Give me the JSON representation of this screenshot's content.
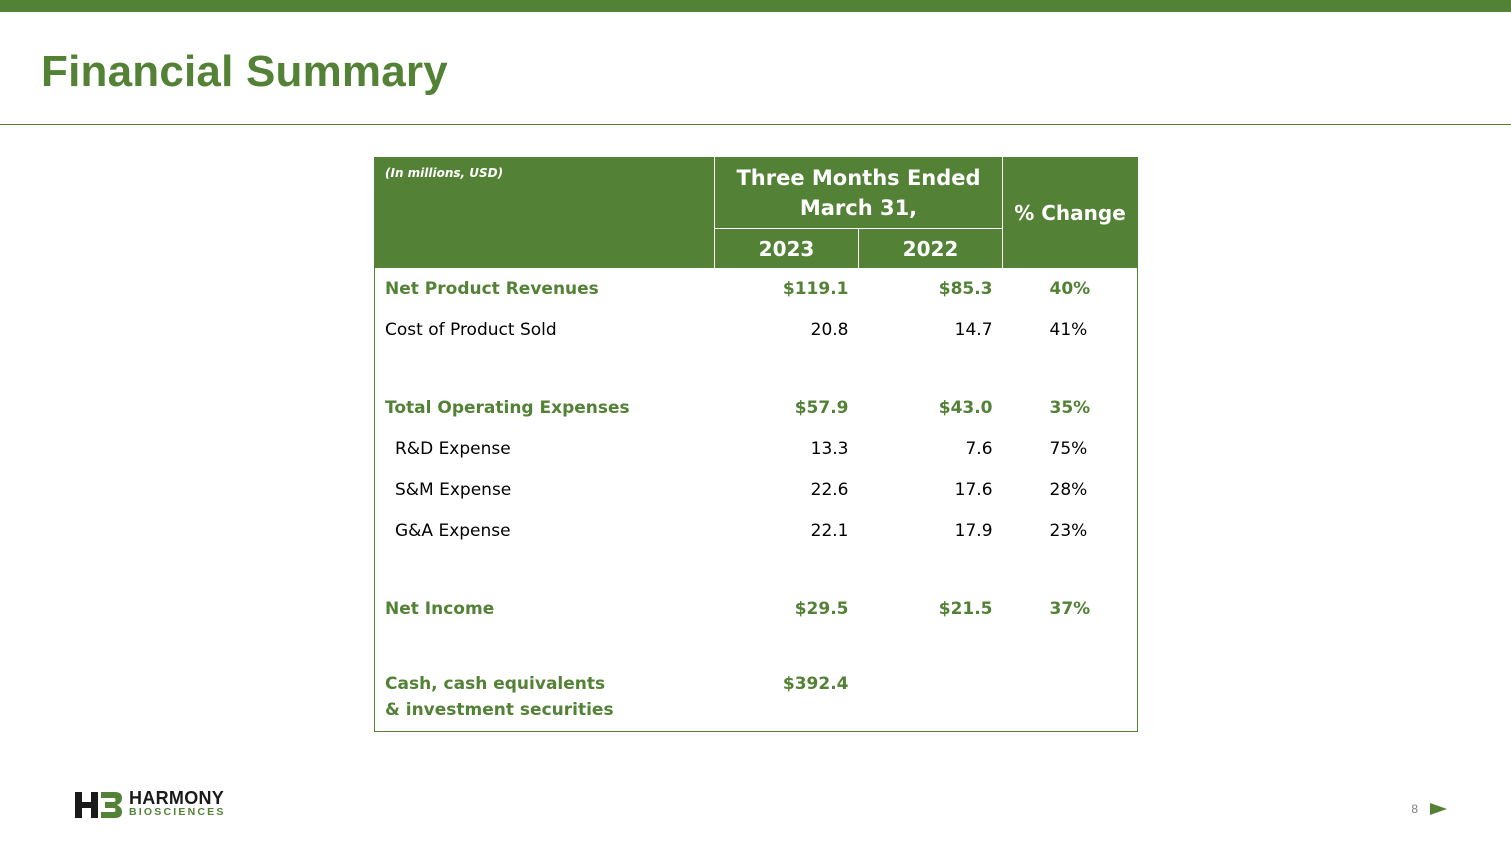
{
  "slide": {
    "title": "Financial Summary",
    "page_number": "8"
  },
  "table": {
    "units": "(In millions, USD)",
    "period_header": "Three Months Ended March 31,",
    "change_header": "% Change",
    "years": [
      "2023",
      "2022"
    ],
    "rows": [
      {
        "label": "Net Product Revenues",
        "v2023": "$119.1",
        "v2022": "$85.3",
        "change": "40%"
      },
      {
        "label": "Cost of Product Sold",
        "v2023": "20.8",
        "v2022": "14.7",
        "change": "41%"
      },
      {
        "label": "Total Operating Expenses",
        "v2023": "$57.9",
        "v2022": "$43.0",
        "change": "35%"
      },
      {
        "label": "R&D Expense",
        "v2023": "13.3",
        "v2022": "7.6",
        "change": "75%"
      },
      {
        "label": "S&M Expense",
        "v2023": "22.6",
        "v2022": "17.6",
        "change": "28%"
      },
      {
        "label": "G&A Expense",
        "v2023": "22.1",
        "v2022": "17.9",
        "change": "23%"
      },
      {
        "label": "Net Income",
        "v2023": "$29.5",
        "v2022": "$21.5",
        "change": "37%"
      },
      {
        "label": "Cash, cash equivalents & investment securities",
        "v2023": "$392.4",
        "v2022": "",
        "change": ""
      }
    ]
  },
  "logo": {
    "name": "HARMONY",
    "subtitle": "BIOSCIENCES",
    "mark_icon": "hb-logo-icon"
  },
  "nav": {
    "next_icon": "play-arrow-icon"
  },
  "colors": {
    "brand_green": "#538135",
    "text": "#000000",
    "page_number": "#7f7f7f"
  }
}
